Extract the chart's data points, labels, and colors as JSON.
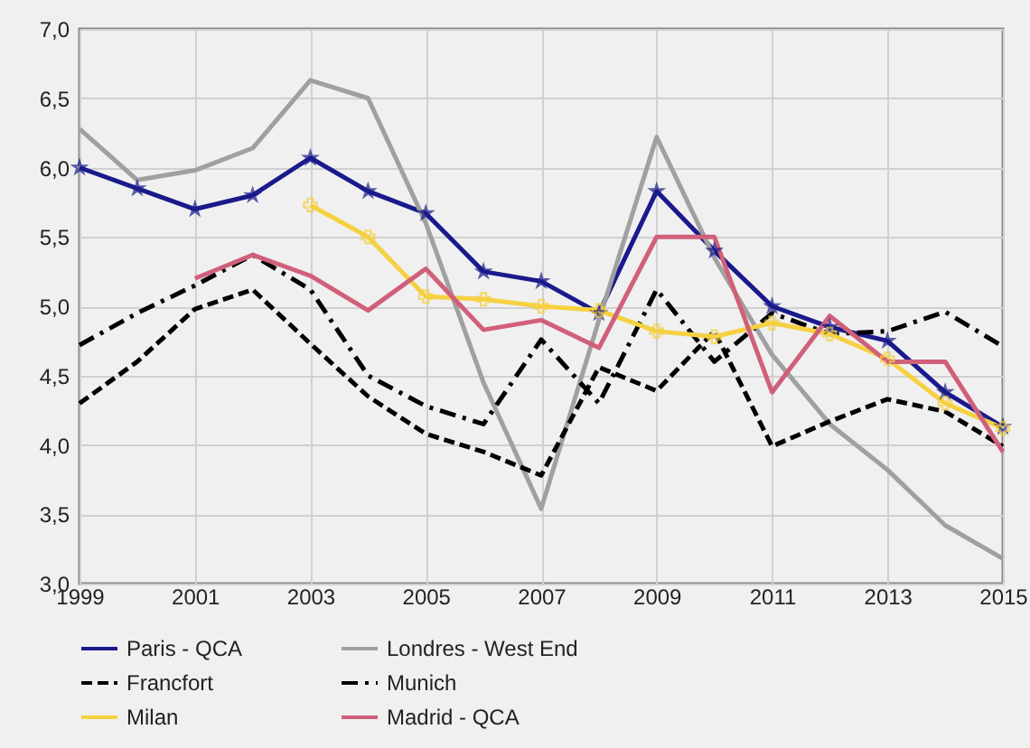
{
  "chart_data": {
    "type": "line",
    "x": [
      1999,
      2000,
      2001,
      2002,
      2003,
      2004,
      2005,
      2006,
      2007,
      2008,
      2009,
      2010,
      2011,
      2012,
      2013,
      2014,
      2015
    ],
    "xlim": [
      1999,
      2015
    ],
    "xticks": [
      1999,
      2001,
      2003,
      2005,
      2007,
      2009,
      2011,
      2013,
      2015
    ],
    "ylim": [
      3,
      7
    ],
    "yticks": [
      {
        "value": 3,
        "label": "3,0"
      },
      {
        "value": 3.5,
        "label": "3,5"
      },
      {
        "value": 4,
        "label": "4,0"
      },
      {
        "value": 4.5,
        "label": "4,5"
      },
      {
        "value": 5,
        "label": "5,0"
      },
      {
        "value": 5.5,
        "label": "5,5"
      },
      {
        "value": 6,
        "label": "6,0"
      },
      {
        "value": 6.5,
        "label": "6,5"
      },
      {
        "value": 7,
        "label": "7,0"
      }
    ],
    "grid": true,
    "legend": "bottom",
    "series": [
      {
        "name": "Paris - QCA",
        "color": "#1a1a8c",
        "line_style": "solid",
        "marker": "star",
        "values": [
          6.0,
          5.85,
          5.7,
          5.8,
          6.07,
          5.83,
          5.67,
          5.25,
          5.18,
          4.95,
          5.83,
          5.4,
          5.0,
          4.85,
          4.75,
          4.38,
          4.13
        ]
      },
      {
        "name": "Londres - West End",
        "color": "#a0a0a0",
        "line_style": "solid",
        "values": [
          6.28,
          5.91,
          5.98,
          6.14,
          6.63,
          6.5,
          5.6,
          4.45,
          3.54,
          4.9,
          6.22,
          5.35,
          4.65,
          4.15,
          3.82,
          3.42,
          3.18
        ]
      },
      {
        "name": "Francfort",
        "color": "#000000",
        "line_style": "dashed",
        "values": [
          4.3,
          4.6,
          4.98,
          5.12,
          4.73,
          4.35,
          4.08,
          3.95,
          3.78,
          4.56,
          4.39,
          4.82,
          3.99,
          4.17,
          4.33,
          4.24,
          3.99
        ]
      },
      {
        "name": "Munich",
        "color": "#000000",
        "line_style": "dashdot",
        "values": [
          4.72,
          4.95,
          5.15,
          5.37,
          5.12,
          4.5,
          4.28,
          4.15,
          4.76,
          4.3,
          5.12,
          4.6,
          4.95,
          4.8,
          4.82,
          4.96,
          4.71
        ]
      },
      {
        "name": "Milan",
        "color": "#f5d142",
        "line_style": "solid",
        "marker": "cross",
        "values": [
          null,
          null,
          null,
          null,
          5.73,
          5.5,
          5.07,
          5.05,
          5.0,
          4.97,
          4.82,
          4.78,
          4.88,
          4.8,
          4.62,
          4.3,
          4.12
        ]
      },
      {
        "name": "Madrid - QCA",
        "color": "#d0607a",
        "line_style": "solid",
        "values": [
          null,
          null,
          5.2,
          5.37,
          5.22,
          4.97,
          5.27,
          4.83,
          4.9,
          4.7,
          5.5,
          5.5,
          4.38,
          4.93,
          4.6,
          4.6,
          3.95
        ]
      }
    ]
  }
}
